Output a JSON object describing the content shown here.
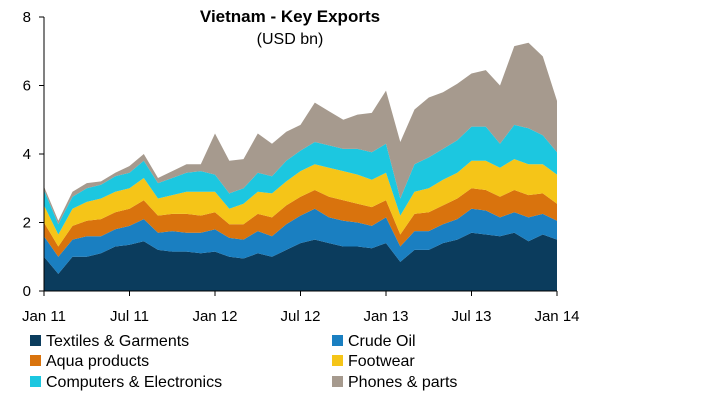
{
  "chart_data": {
    "type": "area",
    "stacked": true,
    "title": "Vietnam - Key Exports",
    "subtitle": "(USD bn)",
    "xlabel": "",
    "ylabel": "",
    "ylim": [
      0,
      8
    ],
    "yticks": [
      0,
      2,
      4,
      6,
      8
    ],
    "xlim": [
      "2011-01",
      "2014-01"
    ],
    "xticks": [
      {
        "date": "2011-01",
        "label": "Jan 11"
      },
      {
        "date": "2011-07",
        "label": "Jul 11"
      },
      {
        "date": "2012-01",
        "label": "Jan 12"
      },
      {
        "date": "2012-07",
        "label": "Jul 12"
      },
      {
        "date": "2013-01",
        "label": "Jan 13"
      },
      {
        "date": "2013-07",
        "label": "Jul 13"
      },
      {
        "date": "2014-01",
        "label": "Jan 14"
      }
    ],
    "grid": false,
    "legend_position": "bottom",
    "x": [
      "2011-01",
      "2011-02",
      "2011-03",
      "2011-04",
      "2011-05",
      "2011-06",
      "2011-07",
      "2011-08",
      "2011-09",
      "2011-10",
      "2011-11",
      "2011-12",
      "2012-01",
      "2012-02",
      "2012-03",
      "2012-04",
      "2012-05",
      "2012-06",
      "2012-07",
      "2012-08",
      "2012-09",
      "2012-10",
      "2012-11",
      "2012-12",
      "2013-01",
      "2013-02",
      "2013-03",
      "2013-04",
      "2013-05",
      "2013-06",
      "2013-07",
      "2013-08",
      "2013-09",
      "2013-10",
      "2013-11",
      "2013-12",
      "2014-01"
    ],
    "series": [
      {
        "name": "Textiles & Garments",
        "color": "#0b3c5d",
        "values": [
          1.0,
          0.5,
          1.0,
          1.0,
          1.1,
          1.3,
          1.35,
          1.45,
          1.2,
          1.15,
          1.15,
          1.1,
          1.15,
          1.0,
          0.95,
          1.1,
          1.0,
          1.2,
          1.4,
          1.5,
          1.4,
          1.3,
          1.3,
          1.25,
          1.4,
          0.85,
          1.2,
          1.2,
          1.4,
          1.5,
          1.7,
          1.65,
          1.6,
          1.7,
          1.45,
          1.65,
          1.5
        ]
      },
      {
        "name": "Crude Oil",
        "color": "#1a7fc1",
        "values": [
          0.6,
          0.5,
          0.5,
          0.6,
          0.5,
          0.5,
          0.55,
          0.65,
          0.5,
          0.6,
          0.55,
          0.6,
          0.65,
          0.55,
          0.55,
          0.65,
          0.6,
          0.75,
          0.8,
          0.9,
          0.75,
          0.75,
          0.7,
          0.65,
          0.75,
          0.45,
          0.55,
          0.55,
          0.55,
          0.6,
          0.7,
          0.7,
          0.55,
          0.6,
          0.7,
          0.6,
          0.55
        ]
      },
      {
        "name": "Aqua products",
        "color": "#d9730d",
        "values": [
          0.4,
          0.3,
          0.4,
          0.45,
          0.5,
          0.5,
          0.5,
          0.55,
          0.5,
          0.5,
          0.55,
          0.5,
          0.5,
          0.4,
          0.45,
          0.5,
          0.55,
          0.55,
          0.55,
          0.55,
          0.6,
          0.6,
          0.55,
          0.55,
          0.5,
          0.35,
          0.5,
          0.55,
          0.55,
          0.6,
          0.6,
          0.6,
          0.6,
          0.65,
          0.65,
          0.6,
          0.5
        ]
      },
      {
        "name": "Footwear",
        "color": "#f5c518",
        "values": [
          0.5,
          0.35,
          0.5,
          0.55,
          0.6,
          0.6,
          0.6,
          0.65,
          0.5,
          0.55,
          0.65,
          0.7,
          0.6,
          0.45,
          0.6,
          0.65,
          0.7,
          0.7,
          0.75,
          0.75,
          0.85,
          0.85,
          0.85,
          0.8,
          0.8,
          0.55,
          0.65,
          0.7,
          0.75,
          0.75,
          0.8,
          0.85,
          0.85,
          0.9,
          0.9,
          0.85,
          0.85
        ]
      },
      {
        "name": "Computers & Electronics",
        "color": "#1cc7e0",
        "values": [
          0.45,
          0.3,
          0.35,
          0.4,
          0.4,
          0.45,
          0.45,
          0.5,
          0.45,
          0.5,
          0.55,
          0.6,
          0.5,
          0.45,
          0.45,
          0.55,
          0.5,
          0.6,
          0.6,
          0.65,
          0.65,
          0.65,
          0.75,
          0.8,
          0.85,
          0.5,
          0.8,
          0.9,
          0.9,
          0.95,
          1.0,
          1.0,
          0.7,
          1.0,
          1.05,
          0.85,
          0.65
        ]
      },
      {
        "name": "Phones & parts",
        "color": "#a69a8e",
        "values": [
          0.1,
          0.1,
          0.15,
          0.15,
          0.1,
          0.1,
          0.2,
          0.2,
          0.15,
          0.2,
          0.25,
          0.2,
          1.2,
          0.95,
          0.85,
          1.15,
          0.95,
          0.85,
          0.75,
          1.15,
          1.0,
          0.85,
          1.0,
          1.15,
          1.55,
          1.65,
          1.6,
          1.75,
          1.65,
          1.65,
          1.55,
          1.65,
          1.7,
          2.3,
          2.5,
          2.3,
          1.5
        ]
      }
    ]
  }
}
